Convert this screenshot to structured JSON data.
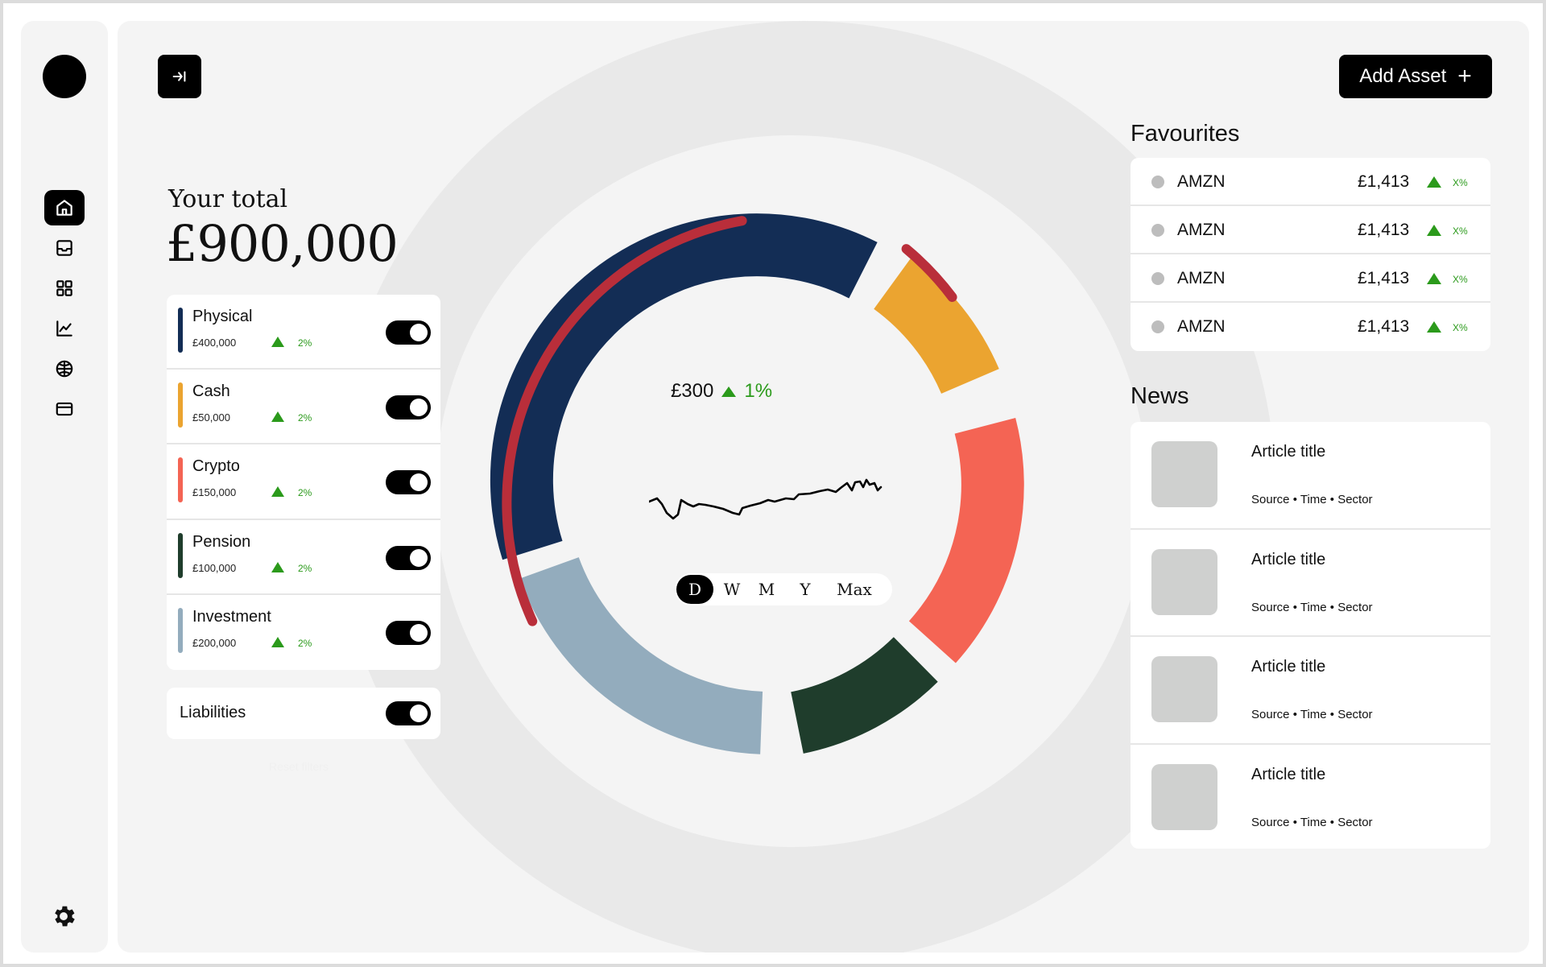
{
  "sidebar": {
    "items": [
      {
        "icon": "home-icon",
        "active": true
      },
      {
        "icon": "inbox-icon",
        "active": false
      },
      {
        "icon": "grid-icon",
        "active": false
      },
      {
        "icon": "chart-line-icon",
        "active": false
      },
      {
        "icon": "globe-icon",
        "active": false
      },
      {
        "icon": "card-icon",
        "active": false
      }
    ],
    "settings_icon": "gear-icon"
  },
  "header": {
    "collapse_icon": "arrow-to-right-icon",
    "add_asset_label": "Add Asset",
    "add_asset_icon": "plus-icon"
  },
  "total": {
    "label": "Your total",
    "value": "£900,000"
  },
  "assets": [
    {
      "name": "Physical",
      "amount": "£400,000",
      "change": "2%",
      "color": "#132d55",
      "enabled": true
    },
    {
      "name": "Cash",
      "amount": "£50,000",
      "change": "2%",
      "color": "#eba430",
      "enabled": true
    },
    {
      "name": "Crypto",
      "amount": "£150,000",
      "change": "2%",
      "color": "#f46454",
      "enabled": true
    },
    {
      "name": "Pension",
      "amount": "£100,000",
      "change": "2%",
      "color": "#1f3d2c",
      "enabled": true
    },
    {
      "name": "Investment",
      "amount": "£200,000",
      "change": "2%",
      "color": "#93acbd",
      "enabled": true
    }
  ],
  "liabilities": {
    "label": "Liabilities",
    "enabled": true
  },
  "reset_filters": "Reset filters",
  "donut": {
    "change_value": "£300",
    "change_pct": "1%",
    "ranges": [
      "D",
      "W",
      "M",
      "Y",
      "Max"
    ],
    "active_range": "D",
    "liability_color": "#b92e3a"
  },
  "favourites": {
    "title": "Favourites",
    "items": [
      {
        "ticker": "AMZN",
        "price": "£1,413",
        "change": "X%"
      },
      {
        "ticker": "AMZN",
        "price": "£1,413",
        "change": "X%"
      },
      {
        "ticker": "AMZN",
        "price": "£1,413",
        "change": "X%"
      },
      {
        "ticker": "AMZN",
        "price": "£1,413",
        "change": "X%"
      }
    ]
  },
  "news": {
    "title": "News",
    "items": [
      {
        "title": "Article title",
        "meta": "Source • Time • Sector"
      },
      {
        "title": "Article title",
        "meta": "Source • Time • Sector"
      },
      {
        "title": "Article title",
        "meta": "Source • Time • Sector"
      },
      {
        "title": "Article title",
        "meta": "Source • Time • Sector"
      }
    ]
  },
  "colors": {
    "accent": "#000000",
    "positive": "#2b9a1b",
    "background": "#f4f4f4"
  }
}
